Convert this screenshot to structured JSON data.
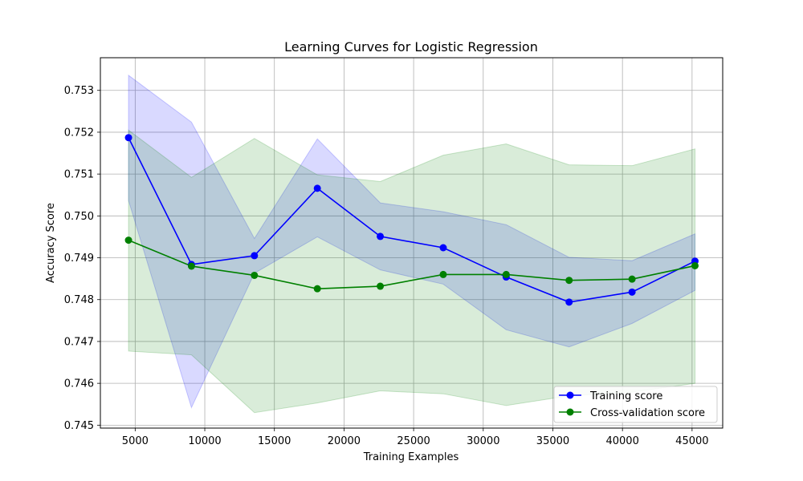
{
  "chart_data": {
    "type": "line",
    "title": "Learning Curves for Logistic Regression",
    "xlabel": "Training Examples",
    "ylabel": "Accuracy Score",
    "xlim": [
      2500,
      47200
    ],
    "ylim": [
      0.74493,
      0.75378
    ],
    "xticks": [
      5000,
      10000,
      15000,
      20000,
      25000,
      30000,
      35000,
      40000,
      45000
    ],
    "yticks": [
      0.745,
      0.746,
      0.747,
      0.748,
      0.749,
      0.75,
      0.751,
      0.752,
      0.753
    ],
    "ytick_labels": [
      "0.745",
      "0.746",
      "0.747",
      "0.748",
      "0.749",
      "0.750",
      "0.751",
      "0.752",
      "0.753"
    ],
    "grid": true,
    "legend_position": "lower-right",
    "x": [
      4521,
      9042,
      13563,
      18084,
      22605,
      27126,
      31647,
      36168,
      40689,
      45210
    ],
    "series": [
      {
        "name": "Training score",
        "color": "#0000ff",
        "band_color": "#0000ff",
        "values": [
          0.75187,
          0.74884,
          0.74905,
          0.75066,
          0.74951,
          0.74924,
          0.74854,
          0.74794,
          0.74818,
          0.74892
        ],
        "band_low": [
          0.75037,
          0.74542,
          0.74863,
          0.7495,
          0.74871,
          0.74837,
          0.74728,
          0.74687,
          0.74743,
          0.74822
        ],
        "band_high": [
          0.75336,
          0.75224,
          0.74946,
          0.75184,
          0.75031,
          0.7501,
          0.74979,
          0.74901,
          0.74893,
          0.74957
        ]
      },
      {
        "name": "Cross-validation score",
        "color": "#008000",
        "band_color": "#008000",
        "values": [
          0.74942,
          0.7488,
          0.74858,
          0.74826,
          0.74832,
          0.7486,
          0.7486,
          0.74846,
          0.74849,
          0.74881
        ],
        "band_low": [
          0.74677,
          0.74668,
          0.7453,
          0.74553,
          0.74582,
          0.74575,
          0.74547,
          0.7457,
          0.74579,
          0.746
        ],
        "band_high": [
          0.75205,
          0.75092,
          0.75185,
          0.75098,
          0.75082,
          0.75145,
          0.75172,
          0.75122,
          0.7512,
          0.7516
        ]
      }
    ]
  }
}
